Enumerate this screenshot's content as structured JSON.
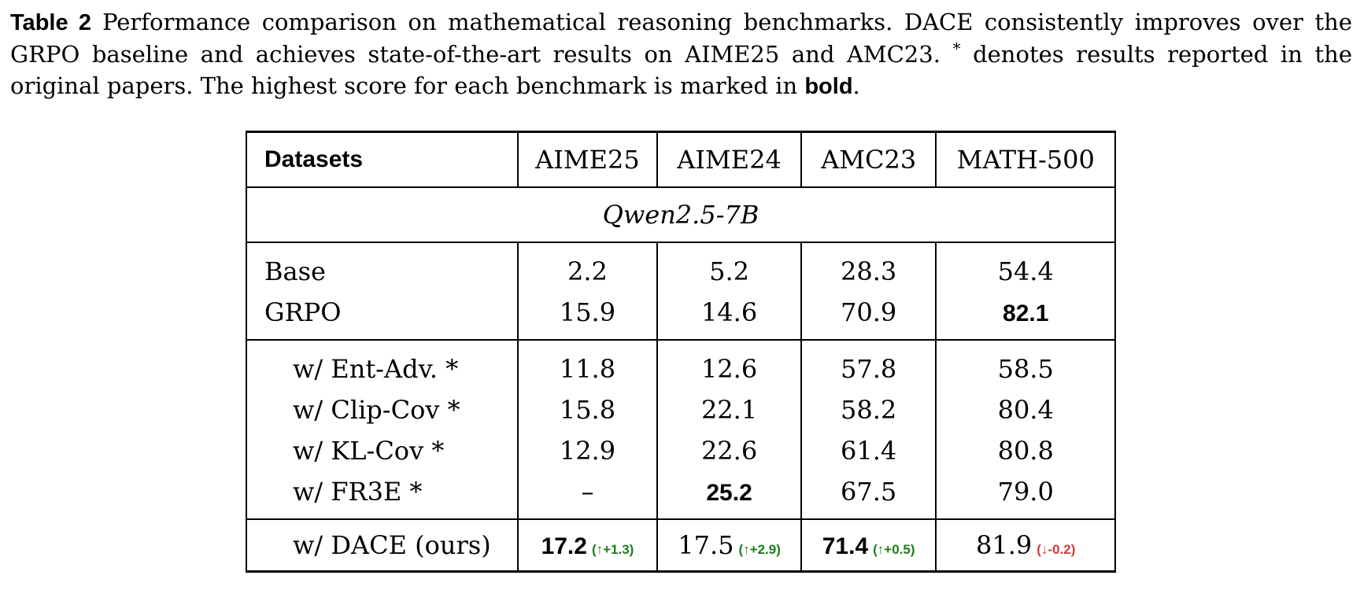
{
  "caption": {
    "label": "Table 2",
    "text_before_star": "Performance comparison on mathematical reasoning benchmarks. DACE consistently improves over the GRPO baseline and achieves state-of-the-art results on AIME25 and AMC23.",
    "star": "*",
    "text_after_star": "denotes results reported in the original papers. The highest score for each benchmark is marked in",
    "bold_word": "bold",
    "end": "."
  },
  "table": {
    "header": [
      "Datasets",
      "AIME25",
      "AIME24",
      "AMC23",
      "MATH-500"
    ],
    "model": "Qwen2.5-7B",
    "rows": {
      "base": {
        "label": "Base",
        "values": [
          "2.2",
          "5.2",
          "28.3",
          "54.4"
        ]
      },
      "grpo": {
        "label": "GRPO",
        "values": [
          "15.9",
          "14.6",
          "70.9",
          "82.1"
        ]
      },
      "entadv": {
        "label": "w/ Ent-Adv. *",
        "values": [
          "11.8",
          "12.6",
          "57.8",
          "58.5"
        ]
      },
      "clipcov": {
        "label": "w/ Clip-Cov *",
        "values": [
          "15.8",
          "22.1",
          "58.2",
          "80.4"
        ]
      },
      "klcov": {
        "label": "w/ KL-Cov *",
        "values": [
          "12.9",
          "22.6",
          "61.4",
          "80.8"
        ]
      },
      "fr3e": {
        "label": "w/ FR3E *",
        "values": [
          "–",
          "25.2",
          "67.5",
          "79.0"
        ]
      },
      "dace": {
        "label": "w/ DACE (ours)",
        "values": [
          "17.2",
          "17.5",
          "71.4",
          "81.9"
        ],
        "deltas": [
          "(↑+1.3)",
          "(↑+2.9)",
          "(↑+0.5)",
          "(↓-0.2)"
        ]
      }
    }
  },
  "colors": {
    "increase": "#1e7d1e",
    "decrease": "#d23b3b"
  }
}
